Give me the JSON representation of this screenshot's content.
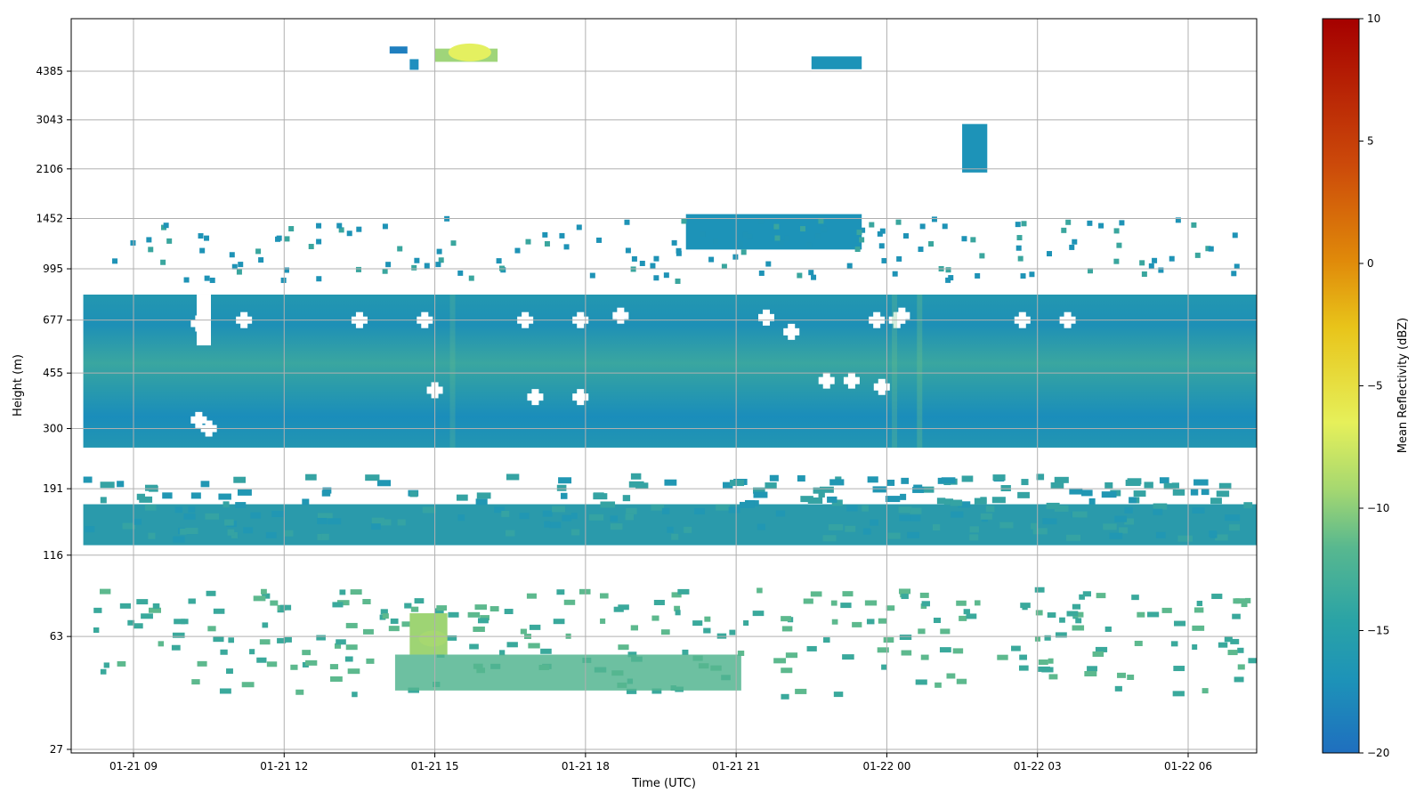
{
  "chart_data": {
    "type": "heatmap",
    "title": "",
    "xlabel": "Time (UTC)",
    "ylabel": "Height (m)",
    "x_ticks": [
      "01-21 09",
      "01-21 12",
      "01-21 15",
      "01-21 18",
      "01-21 21",
      "01-22 00",
      "01-22 03",
      "01-22 06"
    ],
    "x_range": [
      "01-21 07:55",
      "01-22 07:35"
    ],
    "y_ticks": [
      "27",
      "63",
      "116",
      "191",
      "300",
      "455",
      "677",
      "995",
      "1452",
      "2106",
      "3043",
      "4385"
    ],
    "y_range": [
      27,
      5300
    ],
    "grid": true,
    "colorbar": {
      "label": "Mean Reflectivity (dBZ)",
      "ticks": [
        "10",
        "5",
        "0",
        "−5",
        "−10",
        "−15",
        "−20"
      ],
      "range": [
        -20,
        10
      ],
      "colors": [
        "#1f6fbf",
        "#1d93b8",
        "#2aa3a6",
        "#58b88f",
        "#a6d870",
        "#e6f05a",
        "#e8c41a",
        "#e08a0a",
        "#cc4a0a",
        "#a50000"
      ]
    },
    "features": [
      {
        "name": "boundary-layer-band",
        "height_from": 260,
        "height_to": 820,
        "time_from": "01-21 08:00",
        "time_to": "01-22 07:30",
        "mean_dbz": -16
      },
      {
        "name": "mid-band",
        "height_from": 125,
        "height_to": 185,
        "time_from": "01-21 08:00",
        "time_to": "01-22 07:30",
        "mean_dbz": -16
      },
      {
        "name": "near-surface-clutter",
        "height_from": 40,
        "height_to": 80,
        "time_from": "01-21 13:30",
        "time_to": "01-22 01:00",
        "mean_dbz": -13
      },
      {
        "name": "high-cloud",
        "height_from": 4800,
        "height_to": 5300,
        "time_from": "01-21 15:00",
        "time_to": "01-21 16:15",
        "mean_dbz": -8
      },
      {
        "name": "cloud-layer-1300m",
        "height_from": 1150,
        "height_to": 1500,
        "time_from": "01-21 20:00",
        "time_to": "01-21 23:30",
        "mean_dbz": -17
      },
      {
        "name": "column-2500m",
        "height_from": 2050,
        "height_to": 2950,
        "time_from": "01-22 01:30",
        "time_to": "01-22 02:00",
        "mean_dbz": -17
      },
      {
        "name": "cloud-4700m",
        "height_from": 4450,
        "height_to": 4900,
        "time_from": "01-21 22:30",
        "time_to": "01-21 23:30",
        "mean_dbz": -16
      },
      {
        "name": "strong-echo-63m",
        "height_from": 55,
        "height_to": 75,
        "time_from": "01-21 14:30",
        "time_to": "01-21 15:15",
        "mean_dbz": -7
      }
    ]
  }
}
